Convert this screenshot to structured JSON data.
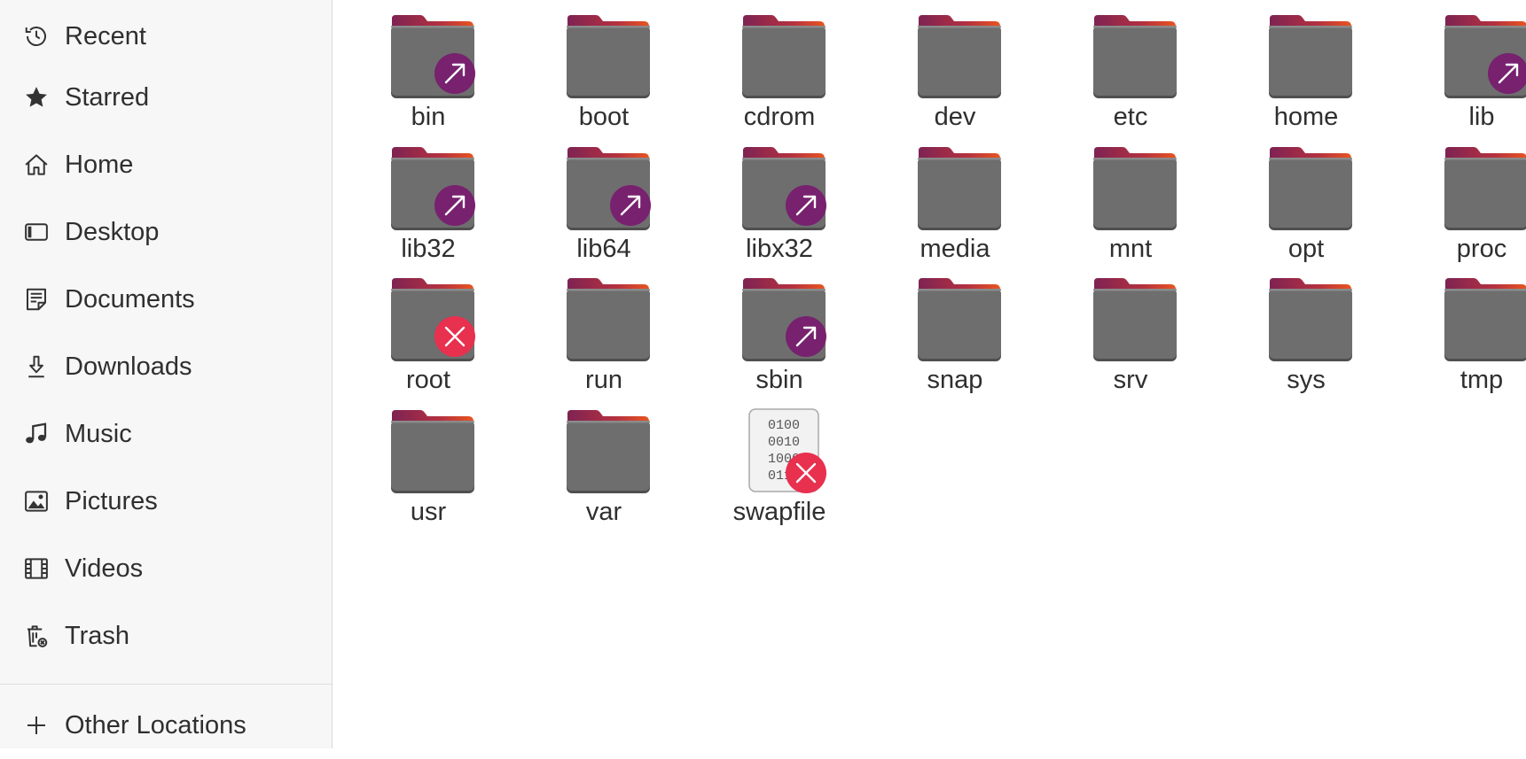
{
  "sidebar": {
    "items": [
      {
        "label": "Recent",
        "icon": "clock-icon"
      },
      {
        "label": "Starred",
        "icon": "star-icon"
      },
      {
        "label": "Home",
        "icon": "home-icon"
      },
      {
        "label": "Desktop",
        "icon": "desktop-icon"
      },
      {
        "label": "Documents",
        "icon": "document-icon"
      },
      {
        "label": "Downloads",
        "icon": "download-icon"
      },
      {
        "label": "Music",
        "icon": "music-icon"
      },
      {
        "label": "Pictures",
        "icon": "picture-icon"
      },
      {
        "label": "Videos",
        "icon": "video-icon"
      },
      {
        "label": "Trash",
        "icon": "trash-icon"
      }
    ],
    "other_locations": {
      "label": "Other Locations",
      "icon": "plus-icon"
    }
  },
  "files": [
    {
      "name": "bin",
      "type": "folder",
      "emblem": "symlink"
    },
    {
      "name": "boot",
      "type": "folder",
      "emblem": "none"
    },
    {
      "name": "cdrom",
      "type": "folder",
      "emblem": "none"
    },
    {
      "name": "dev",
      "type": "folder",
      "emblem": "none"
    },
    {
      "name": "etc",
      "type": "folder",
      "emblem": "none"
    },
    {
      "name": "home",
      "type": "folder",
      "emblem": "none"
    },
    {
      "name": "lib",
      "type": "folder",
      "emblem": "symlink"
    },
    {
      "name": "lib32",
      "type": "folder",
      "emblem": "symlink"
    },
    {
      "name": "lib64",
      "type": "folder",
      "emblem": "symlink"
    },
    {
      "name": "libx32",
      "type": "folder",
      "emblem": "symlink"
    },
    {
      "name": "media",
      "type": "folder",
      "emblem": "none"
    },
    {
      "name": "mnt",
      "type": "folder",
      "emblem": "none"
    },
    {
      "name": "opt",
      "type": "folder",
      "emblem": "none"
    },
    {
      "name": "proc",
      "type": "folder",
      "emblem": "none"
    },
    {
      "name": "root",
      "type": "folder",
      "emblem": "unreadable"
    },
    {
      "name": "run",
      "type": "folder",
      "emblem": "none"
    },
    {
      "name": "sbin",
      "type": "folder",
      "emblem": "symlink"
    },
    {
      "name": "snap",
      "type": "folder",
      "emblem": "none"
    },
    {
      "name": "srv",
      "type": "folder",
      "emblem": "none"
    },
    {
      "name": "sys",
      "type": "folder",
      "emblem": "none"
    },
    {
      "name": "tmp",
      "type": "folder",
      "emblem": "none"
    },
    {
      "name": "usr",
      "type": "folder",
      "emblem": "none"
    },
    {
      "name": "var",
      "type": "folder",
      "emblem": "none"
    },
    {
      "name": "swapfile",
      "type": "binary-file",
      "emblem": "unreadable",
      "icon_text": [
        "0100",
        "0010",
        "1000",
        "0110"
      ]
    }
  ],
  "colors": {
    "folder_body": "#6e6e6e",
    "folder_top_start": "#7e2353",
    "folder_top_end": "#e95420",
    "symlink_emblem": "#77216f",
    "unreadable_emblem": "#e8304f",
    "sidebar_bg": "#f7f7f7"
  }
}
